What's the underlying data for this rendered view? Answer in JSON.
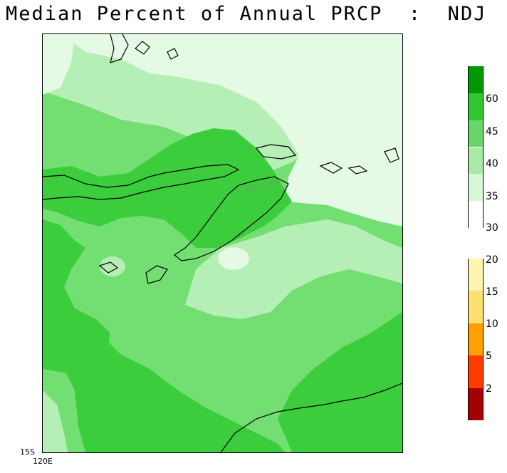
{
  "title": "Median Percent of Annual PRCP  :  NDJ",
  "axes": {
    "lat_label": "15S",
    "lon_label": "120E"
  },
  "legend": {
    "upper": {
      "colors": [
        "#009a00",
        "#2fc82f",
        "#6ad66a",
        "#a6eaa6",
        "#d7f7d7",
        "#ffffff"
      ],
      "ticks": [
        "60",
        "45",
        "40",
        "35",
        "30"
      ]
    },
    "lower": {
      "colors": [
        "#fff4b0",
        "#ffe06e",
        "#ffa000",
        "#ff3c00",
        "#a50000"
      ],
      "ticks": [
        "20",
        "15",
        "10",
        "5",
        "2"
      ]
    }
  },
  "map_colors": {
    "lightest": "#e4fae4",
    "light": "#b6efb6",
    "mid": "#73df73",
    "dark": "#3ccd3c",
    "coast": "#000000",
    "border": "#8a8a8a"
  }
}
